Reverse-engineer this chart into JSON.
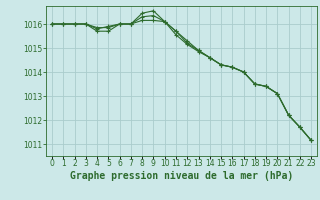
{
  "title": "Graphe pression niveau de la mer (hPa)",
  "background_color": "#cce8e8",
  "grid_color": "#aacccc",
  "line_color": "#2d6b2d",
  "x_labels": [
    "0",
    "1",
    "2",
    "3",
    "4",
    "5",
    "6",
    "7",
    "8",
    "9",
    "10",
    "11",
    "12",
    "13",
    "14",
    "15",
    "16",
    "17",
    "18",
    "19",
    "20",
    "21",
    "22",
    "23"
  ],
  "ylim": [
    1010.5,
    1016.75
  ],
  "yticks": [
    1011,
    1012,
    1013,
    1014,
    1015,
    1016
  ],
  "series": [
    [
      1016.0,
      1016.0,
      1016.0,
      1016.0,
      1015.85,
      1015.85,
      1016.0,
      1016.0,
      1016.15,
      1016.15,
      1016.1,
      1015.7,
      1015.3,
      1014.9,
      1014.6,
      1014.3,
      1014.2,
      1014.0,
      1013.5,
      1013.4,
      1013.1,
      1012.2,
      1011.7,
      1011.15
    ],
    [
      1016.0,
      1016.0,
      1016.0,
      1016.0,
      1015.7,
      1015.7,
      1016.0,
      1016.0,
      1016.45,
      1016.55,
      1016.1,
      1015.7,
      1015.2,
      1014.9,
      1014.6,
      1014.3,
      1014.2,
      1014.0,
      1013.5,
      1013.4,
      1013.1,
      1012.2,
      1011.7,
      1011.15
    ],
    [
      1016.0,
      1016.0,
      1016.0,
      1016.0,
      1015.8,
      1015.9,
      1016.0,
      1016.0,
      1016.3,
      1016.35,
      1016.1,
      1015.55,
      1015.15,
      1014.85,
      1014.6,
      1014.3,
      1014.2,
      1014.0,
      1013.5,
      1013.4,
      1013.1,
      1012.2,
      1011.7,
      1011.15
    ]
  ],
  "title_fontsize": 7,
  "tick_fontsize": 5.5,
  "ytick_fontsize": 5.5
}
